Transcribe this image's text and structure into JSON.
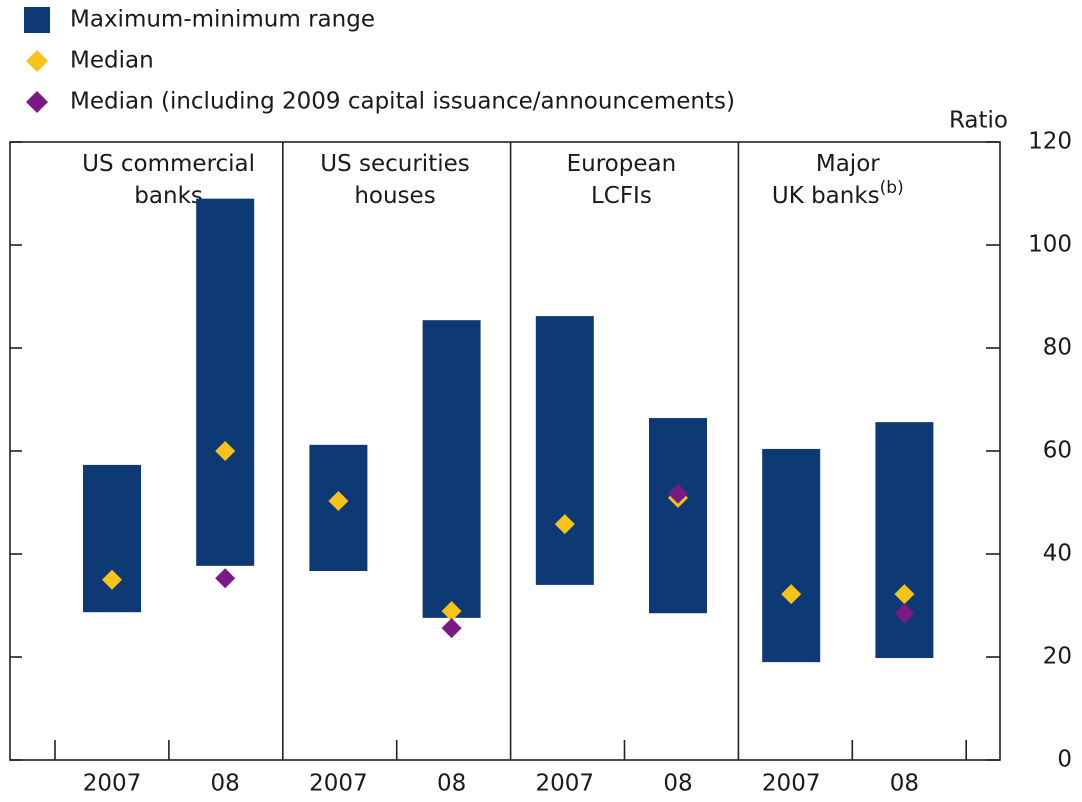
{
  "chart_data": {
    "type": "floating-bar",
    "y_label": "Ratio",
    "ylim": [
      0,
      120
    ],
    "yticks": [
      0,
      20,
      40,
      60,
      80,
      100,
      120
    ],
    "categories": [
      "2007",
      "08",
      "2007",
      "08",
      "2007",
      "08",
      "2007",
      "08"
    ],
    "groups": [
      {
        "lines": [
          "US commercial",
          "banks"
        ]
      },
      {
        "lines": [
          "US securities",
          "houses"
        ]
      },
      {
        "lines": [
          "European",
          "LCFIs"
        ]
      },
      {
        "lines": [
          "Major",
          "UK banks"
        ],
        "note": "(b)"
      }
    ],
    "series": [
      {
        "name": "Maximum-minimum range",
        "color": "#0d3a74",
        "low": [
          28.7,
          37.7,
          36.7,
          27.6,
          34,
          28.5,
          19,
          19.8
        ],
        "high": [
          57.3,
          109,
          61.2,
          85.4,
          86.2,
          66.4,
          60.4,
          65.6
        ]
      },
      {
        "name": "Median",
        "color": "#f7c21a",
        "values": [
          35,
          60,
          50.3,
          28.9,
          45.8,
          50.9,
          32.2,
          32.2
        ]
      },
      {
        "name": "Median (including 2009 capital issuance/announcements)",
        "color": "#7b1a84",
        "values": [
          null,
          35.3,
          null,
          25.6,
          null,
          51.7,
          null,
          28.5
        ]
      }
    ]
  }
}
